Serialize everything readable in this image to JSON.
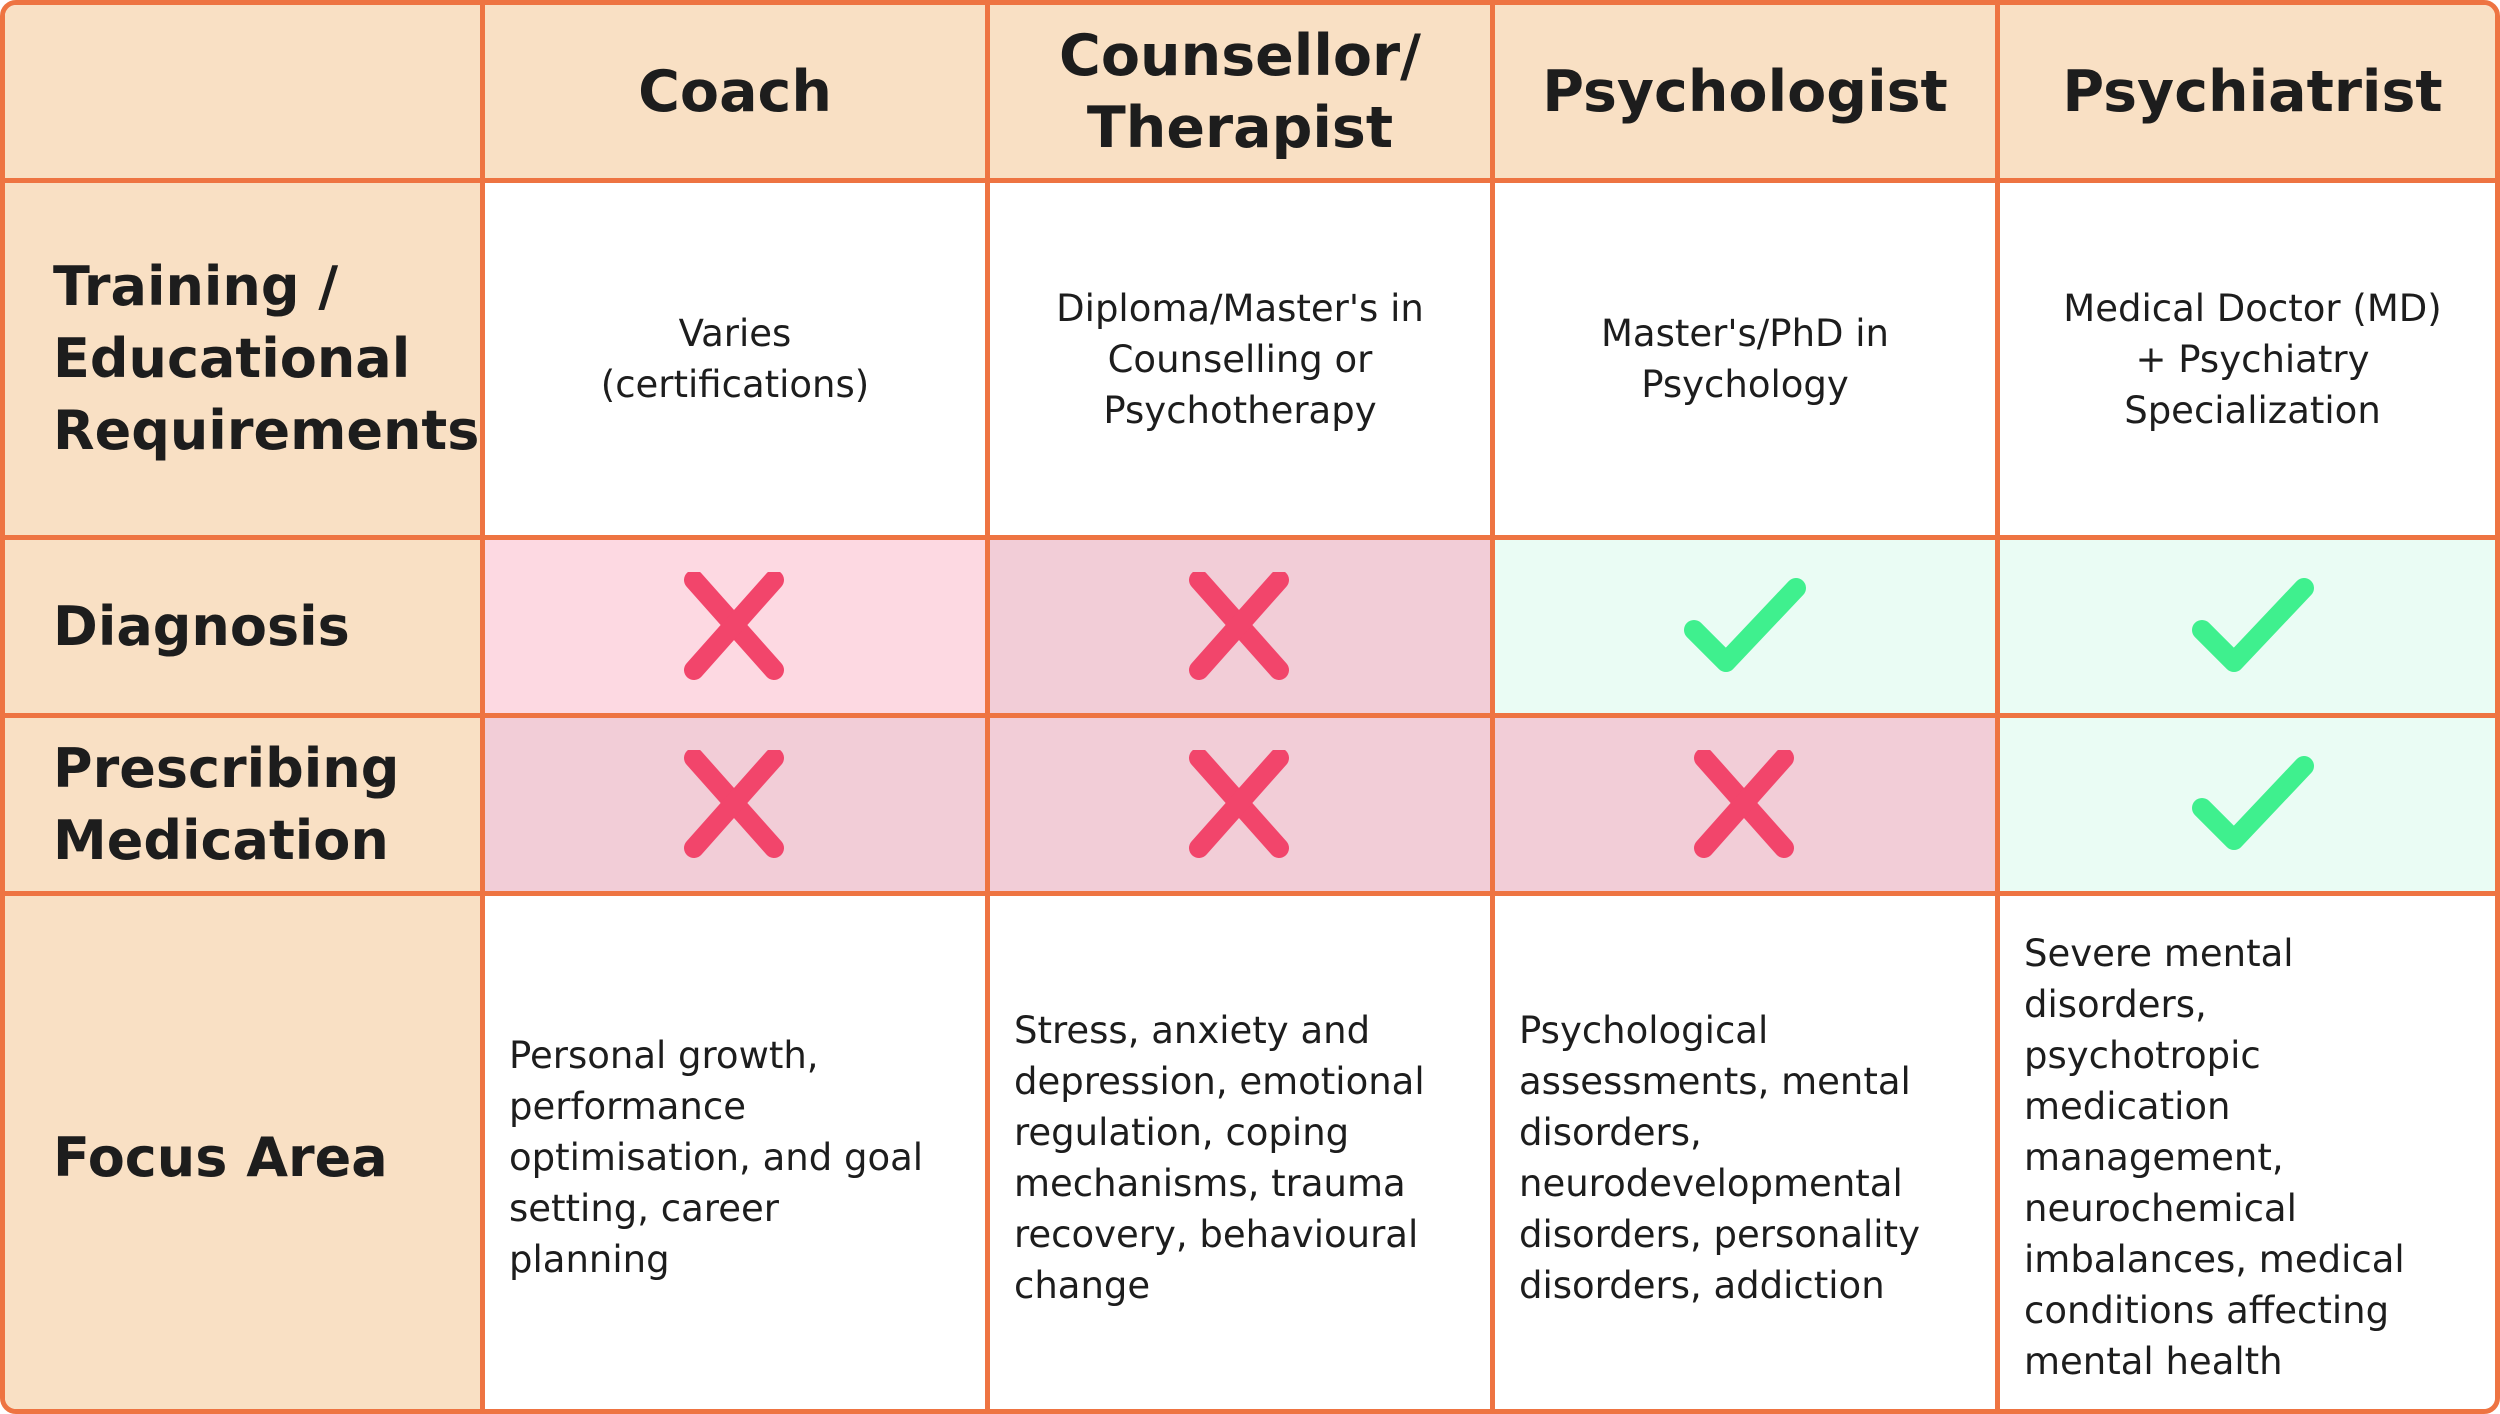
{
  "columns": [
    {
      "label": "Coach"
    },
    {
      "label": "Counsellor/\nTherapist"
    },
    {
      "label": "Psychologist"
    },
    {
      "label": "Psychiatrist"
    }
  ],
  "rows": {
    "training": {
      "label": "Training /\nEducational\nRequirements",
      "values": [
        "Varies\n(certifications)",
        "Diploma/Master's in\nCounselling or\nPsychotherapy",
        "Master's/PhD in\nPsychology",
        "Medical Doctor (MD)\n+ Psychiatry\nSpecialization"
      ]
    },
    "diagnosis": {
      "label": "Diagnosis",
      "values": [
        false,
        false,
        true,
        true
      ]
    },
    "prescribing": {
      "label": "Prescribing\nMedication",
      "values": [
        false,
        false,
        false,
        true
      ]
    },
    "focus": {
      "label": "Focus Area",
      "values": [
        "Personal growth,\nperformance\noptimisation, and goal\nsetting, career\nplanning",
        "Stress, anxiety and\ndepression, emotional\nregulation, coping\nmechanisms, trauma\nrecovery, behavioural\nchange",
        "Psychological\nassessments, mental\ndisorders,\nneurodevelopmental\ndisorders, personality\ndisorders, addiction",
        "Severe mental\ndisorders,\npsychotropic\nmedication\nmanagement,\nneurochemical\nimbalances, medical\nconditions affecting\nmental health"
      ]
    }
  },
  "colors": {
    "border": "#EE7442",
    "header_bg": "#F9E0C4",
    "no_bg_light": "#FDD9E2",
    "no_bg": "#F2CDD7",
    "yes_bg": "#EAFCF4",
    "cross": "#F2456B",
    "check": "#3FF08E"
  },
  "icons": {
    "no": "cross-icon",
    "yes": "check-icon"
  }
}
